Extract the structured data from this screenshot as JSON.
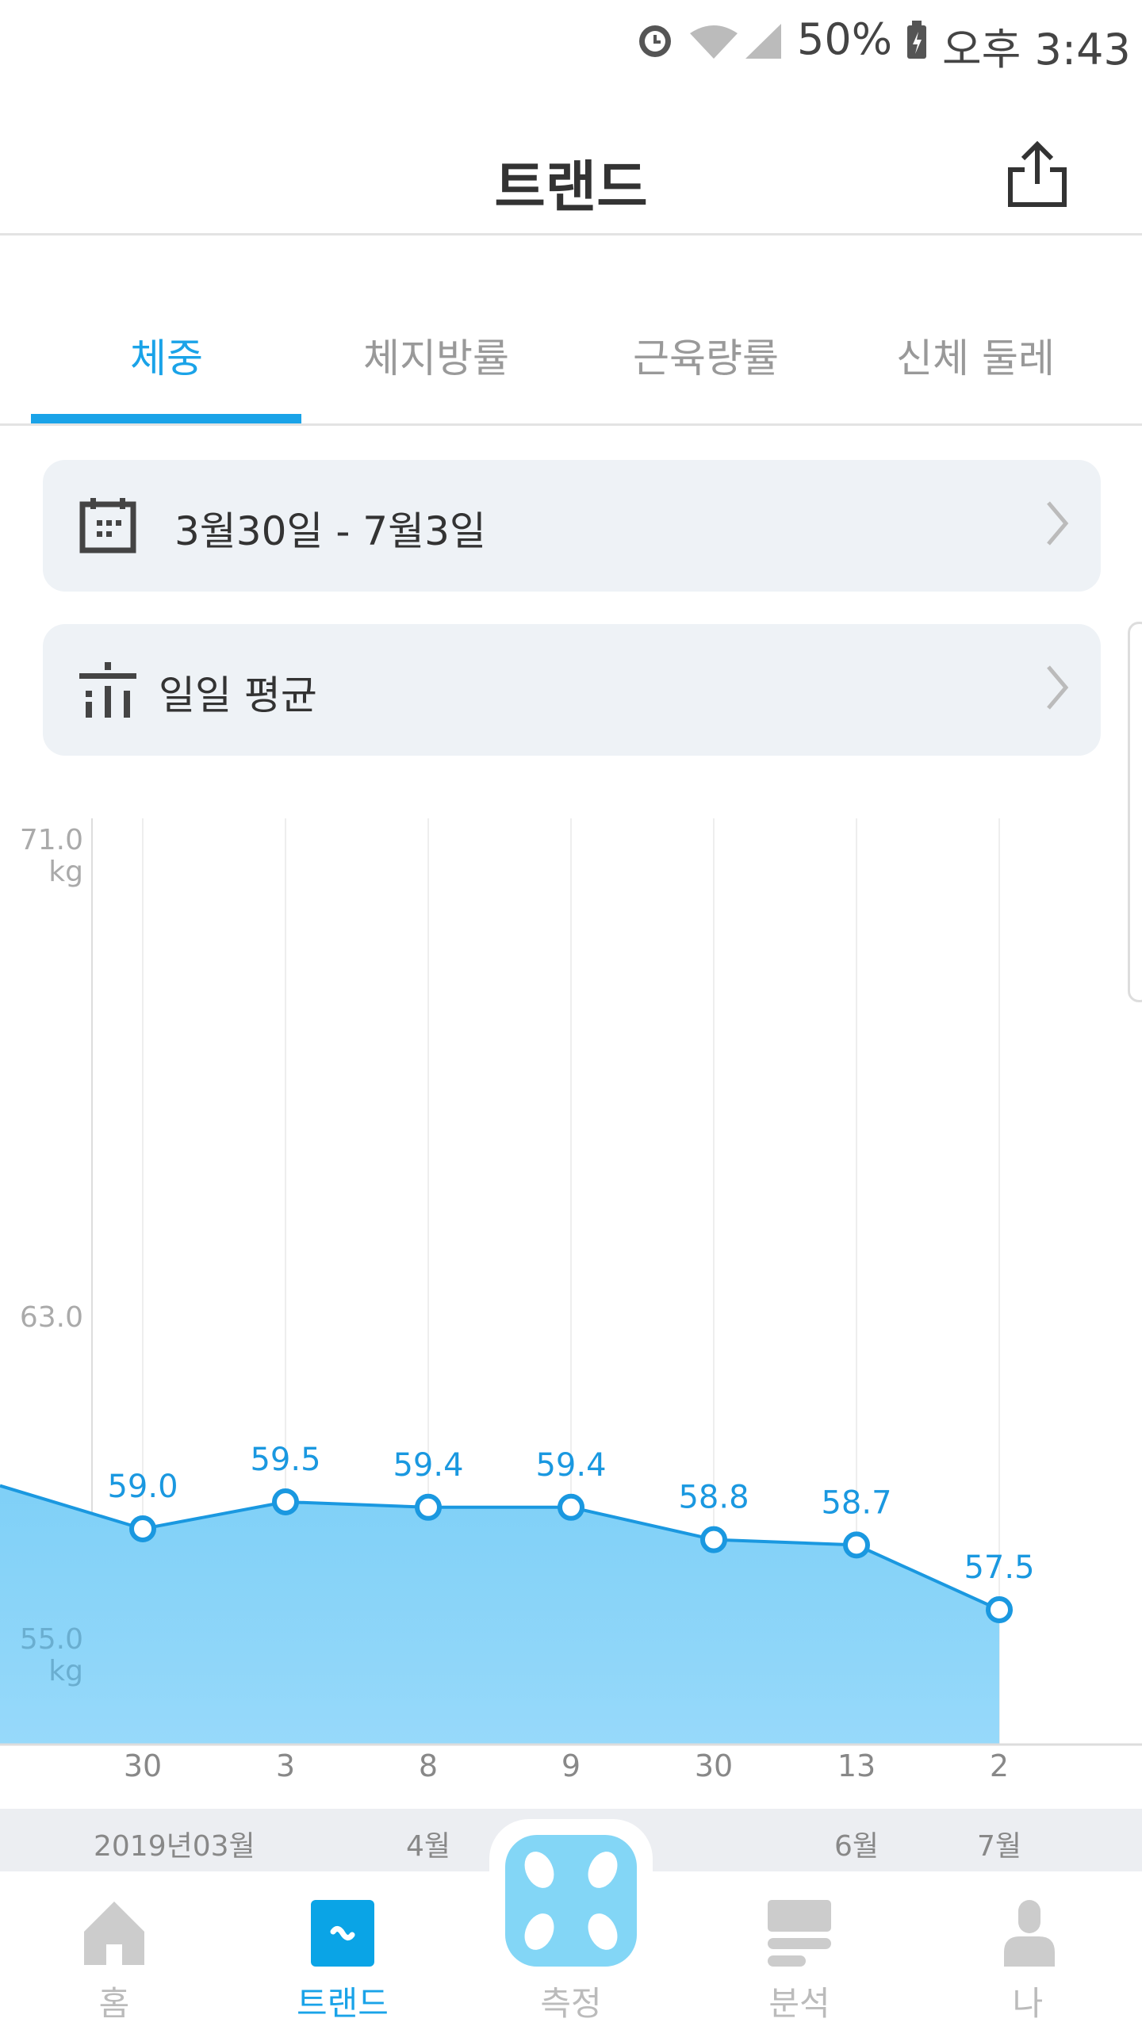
{
  "status_bar": {
    "battery": "50%",
    "time": "오후 3:43",
    "icons": [
      "alarm-icon",
      "wifi-icon",
      "signal-icon",
      "battery-charging-icon"
    ]
  },
  "header": {
    "title": "트랜드",
    "share_icon": "share-icon"
  },
  "tabs": [
    {
      "label": "체중",
      "active": true
    },
    {
      "label": "체지방률"
    },
    {
      "label": "근육량률"
    },
    {
      "label": "신체 둘레"
    }
  ],
  "date_range": {
    "label": "3월30일 - 7월3일",
    "icon": "calendar-icon"
  },
  "aggregation": {
    "label": "일일 평균",
    "icon": "bar-chart-icon"
  },
  "colors": {
    "accent": "#1aa3e8",
    "line": "#1a98e0",
    "fill": "#88d3f8"
  },
  "chart_data": {
    "type": "area",
    "y_ticks": [
      {
        "value": 71.0,
        "label": "71.0",
        "unit": "kg"
      },
      {
        "value": 63.0,
        "label": "63.0"
      },
      {
        "value": 55.0,
        "label": "55.0",
        "unit": "kg"
      }
    ],
    "ylim": [
      55.0,
      71.0
    ],
    "leading_value": 59.8,
    "x": [
      "30",
      "3",
      "8",
      "9",
      "30",
      "13",
      "2"
    ],
    "values": [
      59.0,
      59.5,
      59.4,
      59.4,
      58.8,
      58.7,
      57.5
    ],
    "data_labels": [
      "59.0",
      "59.5",
      "59.4",
      "59.4",
      "58.8",
      "58.7",
      "57.5"
    ],
    "months": [
      {
        "label": "2019년03월",
        "at": 0
      },
      {
        "label": "4월",
        "at": 2
      },
      {
        "label": "6월",
        "at": 5
      },
      {
        "label": "7월",
        "at": 6
      }
    ],
    "grid": true
  },
  "bottom_nav": [
    {
      "label": "홈",
      "icon": "home-icon"
    },
    {
      "label": "트랜드",
      "icon": "trend-icon",
      "active": true
    },
    {
      "label": "측정",
      "icon": "scale-icon"
    },
    {
      "label": "분석",
      "icon": "report-icon"
    },
    {
      "label": "나",
      "icon": "person-icon"
    }
  ]
}
